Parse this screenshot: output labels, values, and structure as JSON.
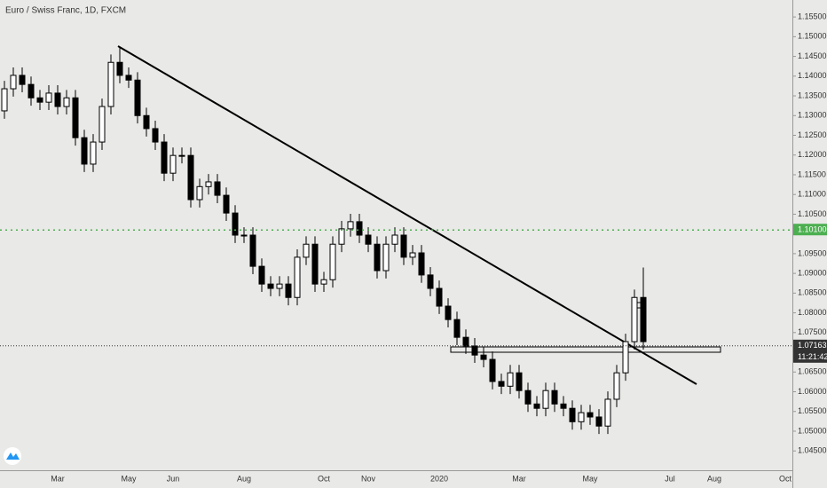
{
  "chart_data": {
    "type": "candlestick",
    "title": "Euro / Swiss Franc, 1D, FXCM",
    "categories": [
      null,
      null,
      null,
      null,
      null,
      null,
      "Mar",
      null,
      null,
      null,
      null,
      null,
      null,
      null,
      "May",
      null,
      null,
      null,
      null,
      "Jun",
      null,
      null,
      null,
      null,
      null,
      null,
      null,
      "Aug",
      null,
      null,
      null,
      null,
      null,
      null,
      null,
      null,
      "Oct",
      null,
      null,
      null,
      null,
      "Nov",
      null,
      null,
      null,
      null,
      null,
      null,
      null,
      "2020",
      null,
      null,
      null,
      null,
      null,
      null,
      null,
      null,
      "Mar",
      null,
      null,
      null,
      null,
      null,
      null,
      null,
      "May",
      null,
      null,
      null,
      null,
      null,
      null,
      null,
      null,
      "Jul",
      null,
      null,
      null,
      null,
      "Aug",
      null,
      null,
      null,
      null,
      null,
      null,
      null,
      "Oct"
    ],
    "open": [
      1.1312,
      1.1368,
      1.1402,
      1.1379,
      1.1345,
      1.1334,
      1.1357,
      1.1323,
      1.1345,
      1.1244,
      1.1177,
      1.1233,
      1.1323,
      1.1435,
      1.1402,
      1.139,
      1.13,
      1.1267,
      1.1233,
      1.1154,
      1.1199,
      1.1199,
      1.1087,
      1.112,
      1.1132,
      1.1098,
      1.1053,
      1.0997,
      1.0997,
      1.0918,
      1.0873,
      1.0862,
      1.0873,
      1.0839,
      1.0941,
      1.0974,
      1.0873,
      1.0884,
      1.0974,
      1.1013,
      1.1031,
      1.0997,
      1.0974,
      1.0907,
      1.0974,
      1.0997,
      1.0941,
      1.0952,
      1.0896,
      1.0862,
      1.0817,
      1.0783,
      1.0738,
      1.0716,
      1.0693,
      1.0682,
      1.0626,
      1.0614,
      1.0648,
      1.0603,
      1.0569,
      1.0558,
      1.0603,
      1.0569,
      1.0558,
      1.0524,
      1.0547,
      1.0536,
      1.0513,
      1.0581,
      1.0648,
      1.0727,
      1.0839,
      null,
      null,
      null,
      null,
      null,
      null,
      null,
      null,
      null,
      null,
      null,
      null,
      null,
      null,
      null,
      null
    ],
    "high": [
      1.1388,
      1.1422,
      1.1422,
      1.1399,
      1.1365,
      1.1377,
      1.1377,
      1.1365,
      1.1365,
      1.1264,
      1.1253,
      1.1343,
      1.1455,
      1.1475,
      1.1422,
      1.141,
      1.132,
      1.1287,
      1.1253,
      1.1219,
      1.1219,
      1.1219,
      1.114,
      1.1152,
      1.1152,
      1.1118,
      1.1073,
      1.1017,
      1.1017,
      1.0938,
      1.0893,
      1.0893,
      1.0893,
      1.0961,
      1.0994,
      1.0994,
      1.0904,
      1.0994,
      1.1033,
      1.1051,
      1.1051,
      1.1017,
      1.0994,
      1.0994,
      1.1017,
      1.1017,
      1.0972,
      1.0972,
      1.0916,
      1.0882,
      1.0837,
      1.0803,
      1.0758,
      1.0736,
      1.0713,
      1.0702,
      1.0646,
      1.0668,
      1.0668,
      1.0623,
      1.0589,
      1.0623,
      1.0623,
      1.0589,
      1.0578,
      1.0567,
      1.0567,
      1.0556,
      1.0601,
      1.0668,
      1.0747,
      1.0859,
      1.0915,
      null,
      null,
      null,
      null,
      null,
      null,
      null,
      null,
      null,
      null,
      null,
      null,
      null,
      null,
      null,
      null
    ],
    "low": [
      1.1292,
      1.1348,
      1.1359,
      1.1325,
      1.1314,
      1.1314,
      1.1303,
      1.1303,
      1.1224,
      1.1157,
      1.1157,
      1.1213,
      1.1303,
      1.1382,
      1.137,
      1.128,
      1.1247,
      1.1213,
      1.1134,
      1.1134,
      1.1179,
      1.1067,
      1.1067,
      1.11,
      1.1078,
      1.1033,
      1.0977,
      1.0977,
      1.0898,
      1.0853,
      1.0842,
      1.0842,
      1.0819,
      1.0819,
      1.0921,
      1.0853,
      1.0853,
      1.0864,
      1.0954,
      1.0993,
      1.0977,
      1.0954,
      1.0887,
      1.0887,
      1.0954,
      1.0921,
      1.0921,
      1.0876,
      1.0842,
      1.0797,
      1.0763,
      1.0718,
      1.0696,
      1.0673,
      1.0662,
      1.0606,
      1.0594,
      1.0594,
      1.0583,
      1.0549,
      1.0538,
      1.0538,
      1.0549,
      1.0538,
      1.0504,
      1.0504,
      1.0516,
      1.0493,
      1.0493,
      1.0561,
      1.0628,
      1.0707,
      1.0707,
      null,
      null,
      null,
      null,
      null,
      null,
      null,
      null,
      null,
      null,
      null,
      null,
      null,
      null,
      null,
      null
    ],
    "close": [
      1.1368,
      1.1402,
      1.1379,
      1.1345,
      1.1334,
      1.1357,
      1.1323,
      1.1345,
      1.1244,
      1.1177,
      1.1233,
      1.1323,
      1.1435,
      1.1402,
      1.139,
      1.13,
      1.1267,
      1.1233,
      1.1154,
      1.1199,
      1.1199,
      1.1087,
      1.112,
      1.1132,
      1.1098,
      1.1053,
      1.0997,
      1.0997,
      1.0918,
      1.0873,
      1.0862,
      1.0873,
      1.0839,
      1.0941,
      1.0974,
      1.0873,
      1.0884,
      1.0974,
      1.1013,
      1.1031,
      1.0997,
      1.0974,
      1.0907,
      1.0974,
      1.0997,
      1.0941,
      1.0952,
      1.0896,
      1.0862,
      1.0817,
      1.0783,
      1.0738,
      1.0716,
      1.0693,
      1.0682,
      1.0626,
      1.0614,
      1.0648,
      1.0603,
      1.0569,
      1.0558,
      1.0603,
      1.0569,
      1.0558,
      1.0524,
      1.0547,
      1.0536,
      1.0513,
      1.0581,
      1.0648,
      1.0727,
      1.0839,
      1.0727,
      null,
      null,
      null,
      null,
      null,
      null,
      null,
      null,
      null,
      null,
      null,
      null,
      null,
      null,
      null,
      null
    ],
    "up_color": "#ffffff",
    "down_color": "#000000",
    "ylim": [
      1.0401,
      1.1593
    ],
    "yticks": [
      {
        "value": 1.155,
        "label": "1.15500"
      },
      {
        "value": 1.15,
        "label": "1.15000"
      },
      {
        "value": 1.145,
        "label": "1.14500"
      },
      {
        "value": 1.14,
        "label": "1.14000"
      },
      {
        "value": 1.135,
        "label": "1.13500"
      },
      {
        "value": 1.13,
        "label": "1.13000"
      },
      {
        "value": 1.125,
        "label": "1.12500"
      },
      {
        "value": 1.12,
        "label": "1.12000"
      },
      {
        "value": 1.115,
        "label": "1.11500"
      },
      {
        "value": 1.11,
        "label": "1.11000"
      },
      {
        "value": 1.105,
        "label": "1.10500"
      },
      {
        "value": 1.095,
        "label": "1.09500"
      },
      {
        "value": 1.09,
        "label": "1.09000"
      },
      {
        "value": 1.085,
        "label": "1.08500"
      },
      {
        "value": 1.08,
        "label": "1.08000"
      },
      {
        "value": 1.075,
        "label": "1.07500"
      },
      {
        "value": 1.065,
        "label": "1.06500"
      },
      {
        "value": 1.06,
        "label": "1.06000"
      },
      {
        "value": 1.055,
        "label": "1.05500"
      },
      {
        "value": 1.05,
        "label": "1.05000"
      },
      {
        "value": 1.045,
        "label": "1.04500"
      }
    ],
    "price_lines": [
      {
        "value": 1.101,
        "label": "1.10100",
        "color": "#4caf50"
      },
      {
        "value": 1.07163,
        "label": "1.07163",
        "countdown": "11:21:42",
        "color": "#333333"
      }
    ]
  }
}
